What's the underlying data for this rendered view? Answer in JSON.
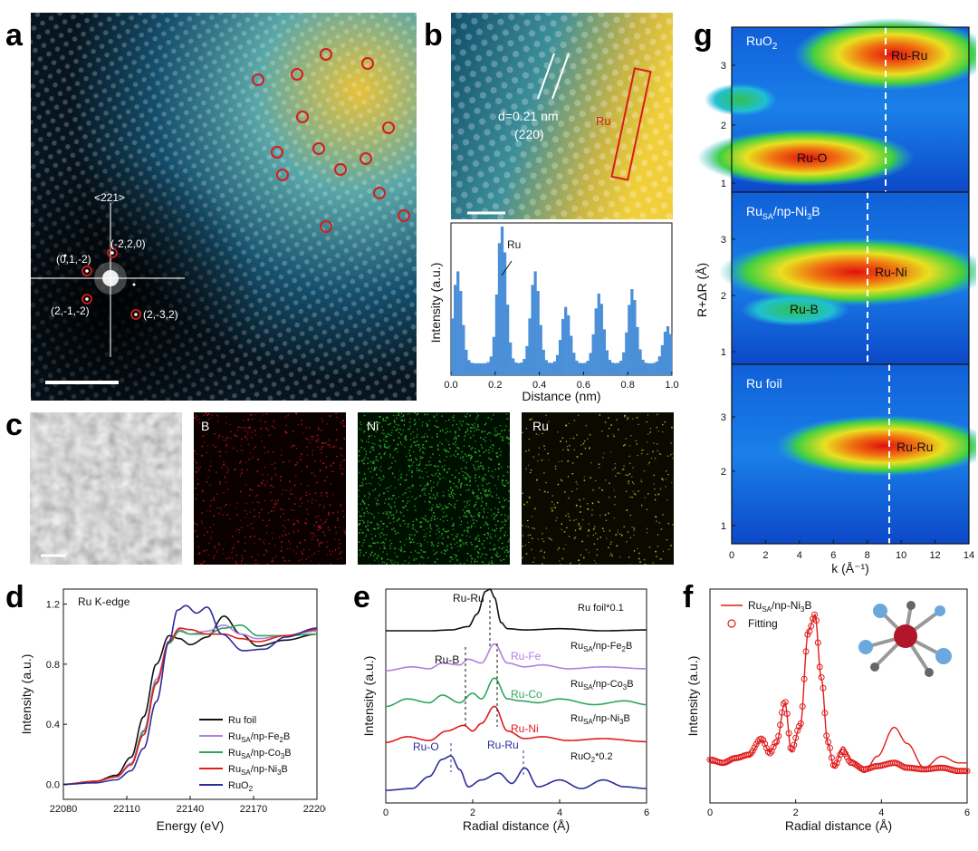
{
  "panels": {
    "a": {
      "label": "a",
      "zone_axis": "<221>",
      "spots": [
        "(-2,2,0)",
        "(0,1,-2)",
        "(2,-1,-2)",
        "(2,-3,2)"
      ]
    },
    "b": {
      "label": "b",
      "d_spacing": "d=0.21 nm",
      "plane": "(220)",
      "ru_label": "Ru"
    },
    "b_profile": {
      "peak_label": "Ru",
      "xlabel": "Distance (nm)",
      "ylabel": "Intensity (a.u.)",
      "xticks": [
        "0.0",
        "0.2",
        "0.4",
        "0.6",
        "0.8",
        "1.0"
      ],
      "chart_data": {
        "type": "bar",
        "xlabel": "Distance (nm)",
        "ylabel": "Intensity (a.u.)",
        "xlim": [
          0,
          1.0
        ],
        "peaks": [
          0.03,
          0.23,
          0.38,
          0.52,
          0.67,
          0.82,
          0.98
        ],
        "peak_heights": [
          0.62,
          0.95,
          0.62,
          0.38,
          0.47,
          0.5,
          0.25
        ]
      }
    },
    "c": {
      "label": "c",
      "maps": [
        "B",
        "Ni",
        "Ru"
      ]
    },
    "d": {
      "label": "d",
      "title": "Ru K-edge",
      "xlabel": "Energy (eV)",
      "ylabel": "Intensity (a.u.)",
      "xticks": [
        "22080",
        "22110",
        "22140",
        "22170",
        "22200"
      ],
      "yticks": [
        "0.0",
        "0.4",
        "0.8",
        "1.2"
      ],
      "legend": [
        {
          "pre": "Ru foil",
          "sub": "",
          "post": "",
          "sub2": "",
          "post2": "",
          "color": "#111111"
        },
        {
          "pre": "Ru",
          "sub": "SA",
          "post": "/np-Fe",
          "sub2": "2",
          "post2": "B",
          "color": "#b07fe0"
        },
        {
          "pre": "Ru",
          "sub": "SA",
          "post": "/np-Co",
          "sub2": "3",
          "post2": "B",
          "color": "#2da65a"
        },
        {
          "pre": "Ru",
          "sub": "SA",
          "post": "/np-Ni",
          "sub2": "3",
          "post2": "B",
          "color": "#e01c1c"
        },
        {
          "pre": "RuO",
          "sub": "2",
          "post": "",
          "sub2": "",
          "post2": "",
          "color": "#2c2c9c"
        }
      ],
      "chart_data": {
        "type": "line",
        "title": "Ru K-edge",
        "xlabel": "Energy (eV)",
        "ylabel": "Intensity (a.u.)",
        "xlim": [
          22080,
          22200
        ],
        "ylim": [
          -0.1,
          1.3
        ],
        "series": [
          {
            "name": "Ru foil",
            "x": [
              22080,
              22095,
              22105,
              22112,
              22118,
              22124,
              22130,
              22135,
              22140,
              22148,
              22156,
              22164,
              22172,
              22185,
              22200
            ],
            "y": [
              0,
              0.02,
              0.06,
              0.18,
              0.45,
              0.8,
              0.99,
              0.97,
              0.93,
              0.98,
              1.12,
              1.0,
              0.92,
              0.96,
              1.0
            ]
          },
          {
            "name": "RuSA/np-Fe2B",
            "x": [
              22080,
              22095,
              22105,
              22112,
              22118,
              22124,
              22130,
              22135,
              22140,
              22148,
              22156,
              22164,
              22172,
              22185,
              22200
            ],
            "y": [
              0,
              0.02,
              0.05,
              0.14,
              0.36,
              0.7,
              0.95,
              1.03,
              1.0,
              1.02,
              1.06,
              1.0,
              0.97,
              0.99,
              1.02
            ]
          },
          {
            "name": "RuSA/np-Co3B",
            "x": [
              22080,
              22095,
              22105,
              22112,
              22118,
              22124,
              22130,
              22135,
              22140,
              22148,
              22156,
              22164,
              22172,
              22185,
              22200
            ],
            "y": [
              0,
              0.02,
              0.05,
              0.13,
              0.35,
              0.68,
              0.94,
              1.02,
              1.0,
              1.0,
              1.04,
              1.06,
              0.99,
              0.99,
              1.0
            ]
          },
          {
            "name": "RuSA/np-Ni3B",
            "x": [
              22080,
              22095,
              22105,
              22112,
              22118,
              22124,
              22130,
              22135,
              22140,
              22148,
              22156,
              22164,
              22172,
              22185,
              22200
            ],
            "y": [
              0,
              0.02,
              0.05,
              0.13,
              0.33,
              0.67,
              0.95,
              1.04,
              1.03,
              1.0,
              1.0,
              0.97,
              0.95,
              0.99,
              1.03
            ]
          },
          {
            "name": "RuO2",
            "x": [
              22080,
              22095,
              22105,
              22112,
              22118,
              22124,
              22130,
              22134,
              22138,
              22143,
              22148,
              22155,
              22165,
              22175,
              22185,
              22200
            ],
            "y": [
              0,
              0.01,
              0.03,
              0.09,
              0.24,
              0.55,
              0.95,
              1.16,
              1.19,
              1.14,
              1.18,
              1.0,
              0.89,
              0.9,
              0.98,
              1.04
            ]
          }
        ]
      }
    },
    "e": {
      "label": "e",
      "xlabel": "Radial distance (Å)",
      "ylabel": "Intensity (a.u.)",
      "xticks": [
        "0",
        "2",
        "4",
        "6"
      ],
      "annotations": {
        "ruru_top": "Ru-Ru",
        "rub": "Ru-B",
        "rufe": "Ru-Fe",
        "ruco": "Ru-Co",
        "runi": "Ru-Ni",
        "ruo": "Ru-O",
        "ruru_bottom": "Ru-Ru"
      },
      "labels": [
        {
          "pre": "Ru foil*0.1",
          "sub": "",
          "post": "",
          "sub2": "",
          "post2": ""
        },
        {
          "pre": "Ru",
          "sub": "SA",
          "post": "/np-Fe",
          "sub2": "2",
          "post2": "B"
        },
        {
          "pre": "Ru",
          "sub": "SA",
          "post": "/np-Co",
          "sub2": "3",
          "post2": "B"
        },
        {
          "pre": "Ru",
          "sub": "SA",
          "post": "/np-Ni",
          "sub2": "3",
          "post2": "B"
        },
        {
          "pre": "RuO",
          "sub": "2",
          "post": "*0.2",
          "sub2": "",
          "post2": ""
        }
      ],
      "chart_data": {
        "type": "line",
        "xlabel": "Radial distance (Å)",
        "ylabel": "Intensity (a.u.)",
        "xlim": [
          0,
          6
        ],
        "series": [
          {
            "name": "Ru foil*0.1",
            "color": "#111111",
            "offset": 4.0,
            "x": [
              0,
              1,
              1.5,
              1.9,
              2.1,
              2.3,
              2.4,
              2.5,
              2.65,
              2.8,
              3.2,
              4,
              5,
              6
            ],
            "y": [
              0,
              0,
              0.02,
              0.1,
              0.4,
              0.95,
              1.0,
              0.8,
              0.2,
              0.05,
              0.02,
              0.05,
              0,
              0.02
            ]
          },
          {
            "name": "RuSA/np-Fe2B",
            "color": "#b07fe0",
            "offset": 3.0,
            "x": [
              0,
              0.6,
              1.0,
              1.3,
              1.7,
              1.9,
              2.2,
              2.5,
              2.8,
              3.2,
              3.6,
              4.2,
              5,
              6
            ],
            "y": [
              0,
              0.1,
              0.05,
              0.2,
              0.15,
              0.3,
              0.2,
              0.7,
              0.2,
              0.1,
              0.15,
              0.05,
              0.1,
              0.05
            ]
          },
          {
            "name": "RuSA/np-Co3B",
            "color": "#2da65a",
            "offset": 2.1,
            "x": [
              0,
              0.5,
              1.0,
              1.3,
              1.7,
              2.0,
              2.2,
              2.5,
              2.8,
              3.1,
              3.5,
              4.0,
              4.8,
              5.5,
              6
            ],
            "y": [
              0,
              0.2,
              0.1,
              0.3,
              0.1,
              0.35,
              0.2,
              0.75,
              0.2,
              0.15,
              0.1,
              0.2,
              0.05,
              0.15,
              0.05
            ]
          },
          {
            "name": "RuSA/np-Ni3B",
            "color": "#e01c1c",
            "offset": 1.2,
            "x": [
              0,
              0.5,
              1.0,
              1.4,
              1.8,
              2.0,
              2.2,
              2.5,
              2.8,
              3.2,
              3.6,
              4.2,
              5,
              6
            ],
            "y": [
              0,
              0.15,
              0.05,
              0.3,
              0.45,
              0.3,
              0.5,
              0.95,
              0.3,
              0.1,
              0.15,
              0.05,
              0.1,
              0.02
            ]
          },
          {
            "name": "RuO2*0.2",
            "color": "#2c2c9c",
            "offset": 0.0,
            "x": [
              0,
              0.6,
              1.0,
              1.3,
              1.5,
              1.7,
              1.9,
              2.2,
              2.6,
              2.9,
              3.2,
              3.5,
              4,
              4.5,
              5,
              5.5,
              6
            ],
            "y": [
              0,
              0.05,
              0.4,
              0.9,
              1.0,
              0.6,
              0.1,
              0.3,
              0.5,
              0.2,
              0.65,
              0.1,
              0.3,
              0.05,
              0.3,
              0.1,
              0.05
            ]
          }
        ]
      }
    },
    "f": {
      "label": "f",
      "xlabel": "Radial distance (Å)",
      "ylabel": "Intensity (a.u.)",
      "xticks": [
        "0",
        "2",
        "4",
        "6"
      ],
      "legend_line": {
        "pre": "Ru",
        "sub": "SA",
        "post": "/np-Ni",
        "sub2": "3",
        "post2": "B"
      },
      "legend_fit": "Fitting",
      "chart_data": {
        "type": "line",
        "xlabel": "Radial distance (Å)",
        "ylabel": "Intensity (a.u.)",
        "xlim": [
          0,
          6
        ],
        "series": [
          {
            "name": "RuSA/np-Ni3B",
            "x": [
              0,
              0.3,
              0.6,
              0.9,
              1.2,
              1.4,
              1.55,
              1.75,
              1.9,
              2.1,
              2.3,
              2.45,
              2.6,
              2.75,
              2.9,
              3.1,
              3.3,
              3.6,
              3.9,
              4.3,
              4.6,
              5.0,
              5.4,
              5.8,
              6
            ],
            "y": [
              0.08,
              0.07,
              0.1,
              0.12,
              0.22,
              0.15,
              0.2,
              0.45,
              0.15,
              0.3,
              0.9,
              1.0,
              0.6,
              0.2,
              0.05,
              0.18,
              0.1,
              0.02,
              0.12,
              0.3,
              0.2,
              0.05,
              0.12,
              0.08,
              0.08
            ]
          },
          {
            "name": "Fitting",
            "x": [
              0,
              0.3,
              0.6,
              0.9,
              1.2,
              1.4,
              1.55,
              1.75,
              1.9,
              2.1,
              2.3,
              2.45,
              2.6,
              2.75,
              2.9,
              3.1,
              3.3,
              3.6,
              3.9,
              4.3,
              4.6,
              5.0,
              5.4,
              5.8,
              6
            ],
            "y": [
              0.1,
              0.08,
              0.11,
              0.13,
              0.23,
              0.14,
              0.21,
              0.46,
              0.16,
              0.31,
              0.89,
              1.0,
              0.61,
              0.21,
              0.06,
              0.15,
              0.08,
              0.04,
              0.06,
              0.08,
              0.05,
              0.04,
              0.05,
              0.03,
              0.03
            ]
          }
        ]
      }
    },
    "g": {
      "label": "g",
      "ylabel": "R+ΔR (Å)",
      "xlabel": "k (Å⁻¹)",
      "xticks": [
        "0",
        "2",
        "4",
        "6",
        "8",
        "10",
        "12",
        "14"
      ],
      "ru_o2_title": {
        "pre": "RuO",
        "sub": "2"
      },
      "sub_titles": [
        {
          "pre": "Ru",
          "sub": "SA",
          "post": "/np-Ni",
          "sub2": "3",
          "post2": "B"
        },
        {
          "pre": "Ru foil",
          "sub": "",
          "post": "",
          "sub2": "",
          "post2": ""
        }
      ],
      "annotations": {
        "ruru1": "Ru-Ru",
        "ruo": "Ru-O",
        "runi": "Ru-Ni",
        "rub": "Ru-B",
        "ruru2": "Ru-Ru"
      },
      "yticks_top": [
        "3",
        "2",
        "1"
      ],
      "yticks_mid": [
        "3",
        "2",
        "1"
      ],
      "yticks_bot": [
        "3",
        "2",
        "1"
      ]
    }
  }
}
